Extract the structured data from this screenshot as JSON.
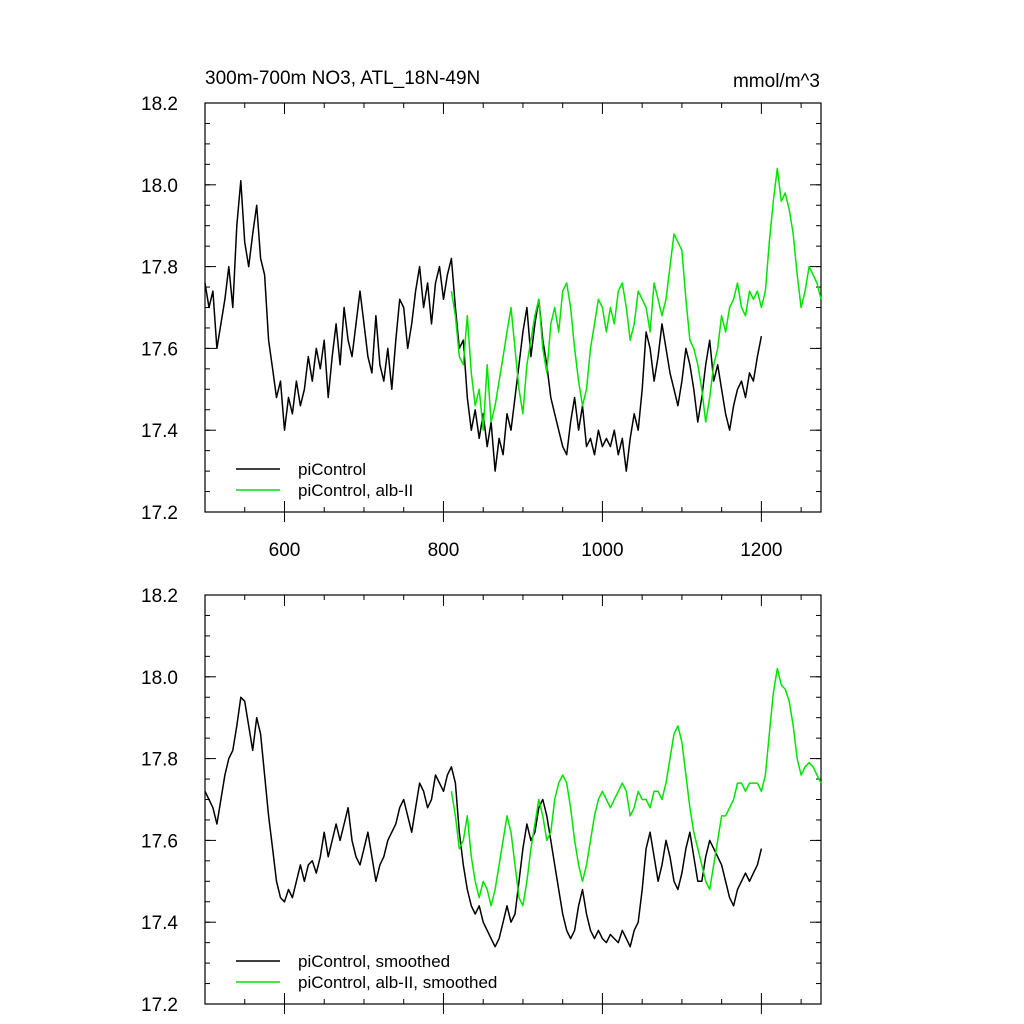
{
  "colors": {
    "pi": "#000000",
    "alb": "#00e400"
  },
  "chart_data": [
    {
      "type": "line",
      "title": "300m-700m NO3, ATL_18N-49N",
      "units": "mmol/m^3",
      "xlim": [
        500,
        1275
      ],
      "ylim": [
        17.2,
        18.2
      ],
      "xticks": [
        600,
        800,
        1000,
        1200
      ],
      "yticks": [
        17.2,
        17.4,
        17.6,
        17.8,
        18.0,
        18.2
      ],
      "ytick_labels": [
        "17.2",
        "17.4",
        "17.6",
        "17.8",
        "18.0",
        "18.2"
      ],
      "legend_position": "bottom-left",
      "series": [
        {
          "name": "piControl",
          "color": "#000000",
          "x": [
            500,
            505,
            510,
            515,
            520,
            525,
            530,
            535,
            540,
            545,
            550,
            555,
            560,
            565,
            570,
            575,
            580,
            585,
            590,
            595,
            600,
            605,
            610,
            615,
            620,
            625,
            630,
            635,
            640,
            645,
            650,
            655,
            660,
            665,
            670,
            675,
            680,
            685,
            690,
            695,
            700,
            705,
            710,
            715,
            720,
            725,
            730,
            735,
            740,
            745,
            750,
            755,
            760,
            765,
            770,
            775,
            780,
            785,
            790,
            795,
            800,
            805,
            810,
            815,
            820,
            825,
            830,
            835,
            840,
            845,
            850,
            855,
            860,
            865,
            870,
            875,
            880,
            885,
            890,
            895,
            900,
            905,
            910,
            915,
            920,
            925,
            930,
            935,
            940,
            945,
            950,
            955,
            960,
            965,
            970,
            975,
            980,
            985,
            990,
            995,
            1000,
            1005,
            1010,
            1015,
            1020,
            1025,
            1030,
            1035,
            1040,
            1045,
            1050,
            1055,
            1060,
            1065,
            1070,
            1075,
            1080,
            1085,
            1090,
            1095,
            1100,
            1105,
            1110,
            1115,
            1120,
            1125,
            1130,
            1135,
            1140,
            1145,
            1150,
            1155,
            1160,
            1165,
            1170,
            1175,
            1180,
            1185,
            1190,
            1195,
            1200
          ],
          "values": [
            17.76,
            17.7,
            17.74,
            17.6,
            17.66,
            17.72,
            17.8,
            17.7,
            17.9,
            18.01,
            17.86,
            17.8,
            17.88,
            17.95,
            17.82,
            17.78,
            17.62,
            17.55,
            17.48,
            17.52,
            17.4,
            17.48,
            17.44,
            17.52,
            17.46,
            17.5,
            17.58,
            17.52,
            17.6,
            17.55,
            17.62,
            17.48,
            17.58,
            17.66,
            17.56,
            17.7,
            17.62,
            17.58,
            17.66,
            17.74,
            17.66,
            17.58,
            17.54,
            17.68,
            17.56,
            17.52,
            17.6,
            17.5,
            17.62,
            17.72,
            17.7,
            17.6,
            17.66,
            17.74,
            17.8,
            17.7,
            17.76,
            17.66,
            17.76,
            17.8,
            17.72,
            17.78,
            17.82,
            17.7,
            17.6,
            17.62,
            17.48,
            17.4,
            17.45,
            17.38,
            17.44,
            17.36,
            17.42,
            17.3,
            17.38,
            17.34,
            17.44,
            17.4,
            17.48,
            17.56,
            17.64,
            17.7,
            17.58,
            17.66,
            17.72,
            17.62,
            17.56,
            17.48,
            17.44,
            17.4,
            17.36,
            17.34,
            17.42,
            17.48,
            17.4,
            17.46,
            17.36,
            17.38,
            17.34,
            17.4,
            17.36,
            17.38,
            17.36,
            17.4,
            17.34,
            17.38,
            17.3,
            17.38,
            17.44,
            17.4,
            17.5,
            17.64,
            17.6,
            17.52,
            17.58,
            17.66,
            17.6,
            17.54,
            17.5,
            17.46,
            17.52,
            17.6,
            17.56,
            17.5,
            17.42,
            17.48,
            17.56,
            17.62,
            17.52,
            17.56,
            17.5,
            17.44,
            17.4,
            17.46,
            17.5,
            17.52,
            17.48,
            17.54,
            17.52,
            17.58,
            17.63
          ]
        },
        {
          "name": "piControl, alb-II",
          "color": "#00e400",
          "x": [
            810,
            815,
            820,
            825,
            830,
            835,
            840,
            845,
            850,
            855,
            860,
            865,
            870,
            875,
            880,
            885,
            890,
            895,
            900,
            905,
            910,
            915,
            920,
            925,
            930,
            935,
            940,
            945,
            950,
            955,
            960,
            965,
            970,
            975,
            980,
            985,
            990,
            995,
            1000,
            1005,
            1010,
            1015,
            1020,
            1025,
            1030,
            1035,
            1040,
            1045,
            1050,
            1055,
            1060,
            1065,
            1070,
            1075,
            1080,
            1085,
            1090,
            1095,
            1100,
            1105,
            1110,
            1115,
            1120,
            1125,
            1130,
            1135,
            1140,
            1145,
            1150,
            1155,
            1160,
            1165,
            1170,
            1175,
            1180,
            1185,
            1190,
            1195,
            1200,
            1205,
            1210,
            1215,
            1220,
            1225,
            1230,
            1235,
            1240,
            1245,
            1250,
            1255,
            1260,
            1265,
            1270,
            1275
          ],
          "values": [
            17.74,
            17.68,
            17.58,
            17.56,
            17.68,
            17.54,
            17.46,
            17.5,
            17.4,
            17.56,
            17.42,
            17.46,
            17.52,
            17.58,
            17.64,
            17.7,
            17.6,
            17.5,
            17.44,
            17.56,
            17.62,
            17.68,
            17.72,
            17.6,
            17.54,
            17.66,
            17.7,
            17.64,
            17.74,
            17.76,
            17.7,
            17.6,
            17.52,
            17.46,
            17.5,
            17.6,
            17.66,
            17.72,
            17.7,
            17.64,
            17.7,
            17.66,
            17.74,
            17.76,
            17.7,
            17.62,
            17.66,
            17.74,
            17.72,
            17.7,
            17.64,
            17.76,
            17.72,
            17.68,
            17.72,
            17.8,
            17.88,
            17.86,
            17.84,
            17.72,
            17.62,
            17.6,
            17.56,
            17.5,
            17.42,
            17.48,
            17.56,
            17.6,
            17.68,
            17.64,
            17.7,
            17.72,
            17.76,
            17.7,
            17.68,
            17.74,
            17.72,
            17.74,
            17.7,
            17.74,
            17.86,
            17.96,
            18.04,
            17.96,
            17.98,
            17.94,
            17.88,
            17.78,
            17.7,
            17.74,
            17.8,
            17.78,
            17.76,
            17.72
          ]
        }
      ]
    },
    {
      "type": "line",
      "xlim": [
        500,
        1275
      ],
      "ylim": [
        17.2,
        18.2
      ],
      "xticks": [
        600,
        800,
        1000,
        1200
      ],
      "yticks": [
        17.2,
        17.4,
        17.6,
        17.8,
        18.0,
        18.2
      ],
      "ytick_labels": [
        "17.2",
        "17.4",
        "17.6",
        "17.8",
        "18.0",
        "18.2"
      ],
      "legend_position": "bottom-left",
      "series": [
        {
          "name": "piControl, smoothed",
          "color": "#000000",
          "x": [
            500,
            505,
            510,
            515,
            520,
            525,
            530,
            535,
            540,
            545,
            550,
            555,
            560,
            565,
            570,
            575,
            580,
            585,
            590,
            595,
            600,
            605,
            610,
            615,
            620,
            625,
            630,
            635,
            640,
            645,
            650,
            655,
            660,
            665,
            670,
            675,
            680,
            685,
            690,
            695,
            700,
            705,
            710,
            715,
            720,
            725,
            730,
            735,
            740,
            745,
            750,
            755,
            760,
            765,
            770,
            775,
            780,
            785,
            790,
            795,
            800,
            805,
            810,
            815,
            820,
            825,
            830,
            835,
            840,
            845,
            850,
            855,
            860,
            865,
            870,
            875,
            880,
            885,
            890,
            895,
            900,
            905,
            910,
            915,
            920,
            925,
            930,
            935,
            940,
            945,
            950,
            955,
            960,
            965,
            970,
            975,
            980,
            985,
            990,
            995,
            1000,
            1005,
            1010,
            1015,
            1020,
            1025,
            1030,
            1035,
            1040,
            1045,
            1050,
            1055,
            1060,
            1065,
            1070,
            1075,
            1080,
            1085,
            1090,
            1095,
            1100,
            1105,
            1110,
            1115,
            1120,
            1125,
            1130,
            1135,
            1140,
            1145,
            1150,
            1155,
            1160,
            1165,
            1170,
            1175,
            1180,
            1185,
            1190,
            1195,
            1200
          ],
          "values": [
            17.72,
            17.7,
            17.68,
            17.64,
            17.7,
            17.76,
            17.8,
            17.82,
            17.88,
            17.95,
            17.94,
            17.88,
            17.82,
            17.9,
            17.86,
            17.76,
            17.66,
            17.58,
            17.5,
            17.46,
            17.45,
            17.48,
            17.46,
            17.5,
            17.54,
            17.5,
            17.54,
            17.55,
            17.52,
            17.56,
            17.62,
            17.56,
            17.6,
            17.64,
            17.6,
            17.64,
            17.68,
            17.6,
            17.56,
            17.54,
            17.58,
            17.62,
            17.56,
            17.5,
            17.54,
            17.56,
            17.6,
            17.62,
            17.64,
            17.68,
            17.7,
            17.66,
            17.62,
            17.68,
            17.74,
            17.72,
            17.68,
            17.7,
            17.76,
            17.74,
            17.72,
            17.76,
            17.78,
            17.74,
            17.62,
            17.54,
            17.48,
            17.44,
            17.42,
            17.44,
            17.4,
            17.38,
            17.36,
            17.34,
            17.36,
            17.4,
            17.44,
            17.4,
            17.42,
            17.5,
            17.58,
            17.64,
            17.6,
            17.62,
            17.68,
            17.7,
            17.66,
            17.6,
            17.54,
            17.48,
            17.42,
            17.38,
            17.36,
            17.38,
            17.44,
            17.48,
            17.42,
            17.38,
            17.36,
            17.38,
            17.36,
            17.35,
            17.37,
            17.36,
            17.35,
            17.38,
            17.36,
            17.34,
            17.38,
            17.4,
            17.48,
            17.58,
            17.62,
            17.56,
            17.5,
            17.54,
            17.6,
            17.56,
            17.5,
            17.48,
            17.52,
            17.58,
            17.62,
            17.56,
            17.5,
            17.5,
            17.56,
            17.6,
            17.58,
            17.56,
            17.54,
            17.5,
            17.46,
            17.44,
            17.48,
            17.5,
            17.52,
            17.5,
            17.52,
            17.54,
            17.58
          ]
        },
        {
          "name": "piControl, alb-II, smoothed",
          "color": "#00e400",
          "x": [
            810,
            815,
            820,
            825,
            830,
            835,
            840,
            845,
            850,
            855,
            860,
            865,
            870,
            875,
            880,
            885,
            890,
            895,
            900,
            905,
            910,
            915,
            920,
            925,
            930,
            935,
            940,
            945,
            950,
            955,
            960,
            965,
            970,
            975,
            980,
            985,
            990,
            995,
            1000,
            1005,
            1010,
            1015,
            1020,
            1025,
            1030,
            1035,
            1040,
            1045,
            1050,
            1055,
            1060,
            1065,
            1070,
            1075,
            1080,
            1085,
            1090,
            1095,
            1100,
            1105,
            1110,
            1115,
            1120,
            1125,
            1130,
            1135,
            1140,
            1145,
            1150,
            1155,
            1160,
            1165,
            1170,
            1175,
            1180,
            1185,
            1190,
            1195,
            1200,
            1205,
            1210,
            1215,
            1220,
            1225,
            1230,
            1235,
            1240,
            1245,
            1250,
            1255,
            1260,
            1265,
            1270,
            1275
          ],
          "values": [
            17.72,
            17.66,
            17.58,
            17.6,
            17.66,
            17.56,
            17.5,
            17.46,
            17.5,
            17.48,
            17.44,
            17.48,
            17.54,
            17.6,
            17.66,
            17.62,
            17.54,
            17.46,
            17.44,
            17.5,
            17.58,
            17.64,
            17.7,
            17.66,
            17.6,
            17.62,
            17.7,
            17.74,
            17.76,
            17.74,
            17.68,
            17.6,
            17.54,
            17.5,
            17.54,
            17.6,
            17.66,
            17.7,
            17.72,
            17.7,
            17.68,
            17.7,
            17.72,
            17.74,
            17.72,
            17.66,
            17.68,
            17.72,
            17.7,
            17.7,
            17.68,
            17.72,
            17.72,
            17.7,
            17.74,
            17.8,
            17.86,
            17.88,
            17.84,
            17.76,
            17.68,
            17.62,
            17.58,
            17.54,
            17.5,
            17.48,
            17.54,
            17.6,
            17.66,
            17.66,
            17.68,
            17.7,
            17.74,
            17.74,
            17.72,
            17.74,
            17.74,
            17.74,
            17.72,
            17.76,
            17.86,
            17.96,
            18.02,
            17.98,
            17.97,
            17.94,
            17.88,
            17.8,
            17.76,
            17.78,
            17.79,
            17.78,
            17.76,
            17.74
          ]
        }
      ]
    }
  ]
}
